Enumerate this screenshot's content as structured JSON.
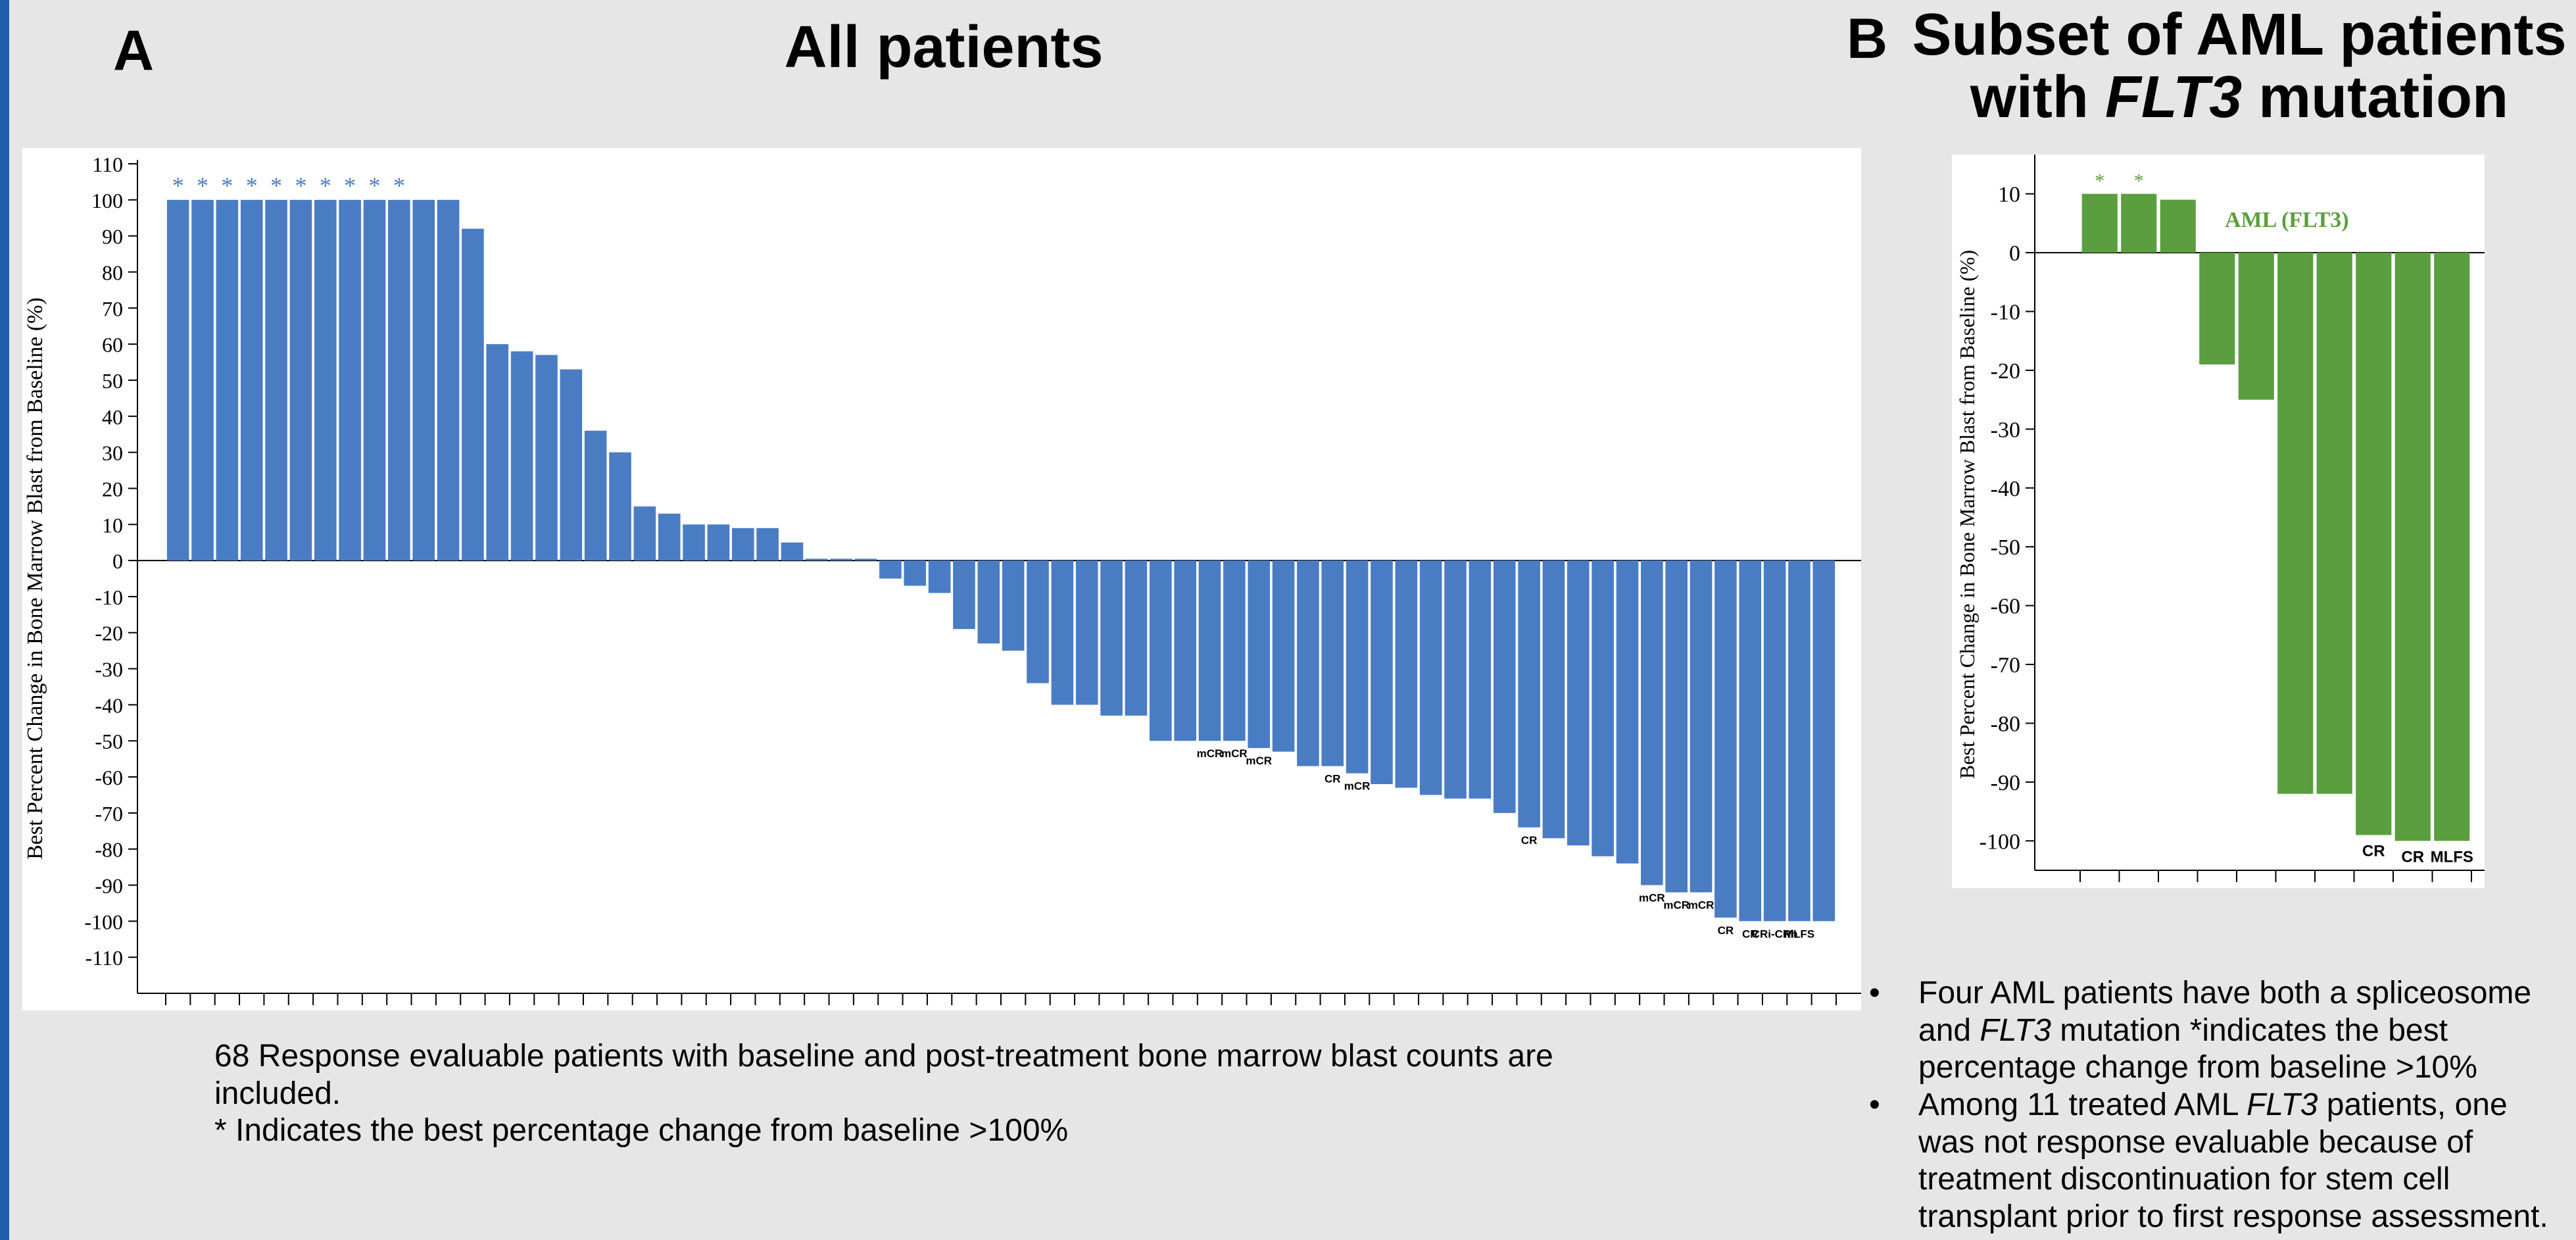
{
  "panelA": {
    "letter": "A",
    "title": "All patients",
    "note_line1": "68 Response evaluable patients with baseline and post-treatment bone marrow blast counts are included.",
    "note_line2": "* Indicates the best percentage change from baseline >100%"
  },
  "panelB": {
    "letter": "B",
    "title_line1": "Subset of AML patients",
    "title_prefix": "with ",
    "title_gene": "FLT3",
    "title_suffix": " mutation",
    "bullet1_pre": "Four AML patients have both a spliceosome and ",
    "bullet1_gene": "FLT3",
    "bullet1_post": " mutation *indicates the best percentage change from baseline >10%",
    "bullet2_pre": "Among 11 treated AML ",
    "bullet2_gene": "FLT3",
    "bullet2_post": " patients, one was not response evaluable because of treatment discontinuation for stem cell transplant prior to first response assessment."
  },
  "colors": {
    "bar_blue": "#4a7cc4",
    "bar_green": "#5a9e3f",
    "star_blue": "#4a7cc4",
    "star_green": "#5a9e3f"
  },
  "chart_data": [
    {
      "type": "bar",
      "title": "All patients",
      "xlabel": "",
      "ylabel": "Best Percent Change in Bone Marrow Blast from Baseline (%)",
      "ylim": [
        -120,
        110
      ],
      "yticks": [
        110,
        100,
        90,
        80,
        70,
        60,
        50,
        40,
        30,
        20,
        10,
        0,
        -10,
        -20,
        -30,
        -40,
        -50,
        -60,
        -70,
        -80,
        -90,
        -100,
        -110
      ],
      "values": [
        100,
        100,
        100,
        100,
        100,
        100,
        100,
        100,
        100,
        100,
        100,
        100,
        92,
        60,
        58,
        57,
        53,
        36,
        30,
        15,
        13,
        10,
        10,
        9,
        9,
        5,
        0.5,
        0.5,
        0.5,
        -5,
        -7,
        -9,
        -19,
        -23,
        -25,
        -34,
        -40,
        -40,
        -43,
        -43,
        -50,
        -50,
        -50,
        -50,
        -52,
        -53,
        -57,
        -57,
        -59,
        -62,
        -63,
        -65,
        -66,
        -66,
        -70,
        -74,
        -77,
        -79,
        -82,
        -84,
        -90,
        -92,
        -92,
        -99,
        -100,
        -100,
        -100,
        -100
      ],
      "starred": [
        0,
        1,
        2,
        3,
        4,
        5,
        6,
        7,
        8,
        9
      ],
      "star_symbol": "*",
      "annotations": [
        {
          "bar": 42,
          "text": "mCR"
        },
        {
          "bar": 43,
          "text": "mCR"
        },
        {
          "bar": 44,
          "text": "mCR"
        },
        {
          "bar": 47,
          "text": "CR"
        },
        {
          "bar": 48,
          "text": "mCR"
        },
        {
          "bar": 55,
          "text": "CR"
        },
        {
          "bar": 60,
          "text": "mCR"
        },
        {
          "bar": 61,
          "text": "mCR"
        },
        {
          "bar": 62,
          "text": "mCR"
        },
        {
          "bar": 63,
          "text": "CR"
        },
        {
          "bar": 64,
          "text": "CR"
        },
        {
          "bar": 65,
          "text": "CRi-CRh"
        },
        {
          "bar": 66,
          "text": "MLFS"
        }
      ]
    },
    {
      "type": "bar",
      "title": "Subset of AML patients with FLT3 mutation",
      "xlabel": "",
      "ylabel": "Best Percent Change in Bone Marrow Blast from Baseline (%)",
      "ylim": [
        -105,
        16
      ],
      "yticks": [
        10,
        0,
        -10,
        -20,
        -30,
        -40,
        -50,
        -60,
        -70,
        -80,
        -90,
        -100
      ],
      "series_label": "AML (FLT3)",
      "values": [
        10,
        10,
        9,
        -19,
        -25,
        -92,
        -92,
        -99,
        -100,
        -100
      ],
      "starred": [
        0,
        1
      ],
      "star_symbol": "*",
      "annotations": [
        {
          "bar": 7,
          "text": "CR"
        },
        {
          "bar": 8,
          "text": "CR"
        },
        {
          "bar": 9,
          "text": "MLFS"
        }
      ]
    }
  ]
}
